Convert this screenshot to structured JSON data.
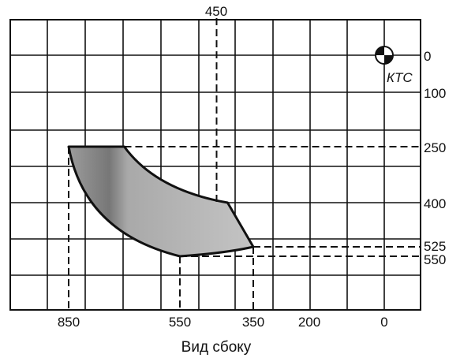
{
  "caption": "Вид сбоку",
  "top_label": "450",
  "reference_point": {
    "label": "КТС",
    "x": 0,
    "y": 0
  },
  "x_axis_labels": [
    "850",
    "550",
    "350",
    "200",
    "0"
  ],
  "y_axis_labels": [
    "0",
    "100",
    "250",
    "400",
    "525",
    "550"
  ],
  "chart_data": {
    "type": "area",
    "title": "",
    "xlabel": "Вид сбоку",
    "ylabel": "",
    "x_ticks": [
      850,
      550,
      350,
      200,
      0
    ],
    "y_ticks": [
      0,
      100,
      250,
      400,
      525,
      550
    ],
    "grid": true,
    "series": [
      {
        "points": [
          [
            850,
            250
          ],
          [
            700,
            250
          ],
          [
            420,
            400
          ],
          [
            350,
            525
          ],
          [
            550,
            550
          ]
        ],
        "fill": "#b8b8b8",
        "stroke": "#111111"
      }
    ],
    "dashed_guides": [
      {
        "orientation": "vertical",
        "x": 450
      },
      {
        "orientation": "vertical",
        "x": 850
      },
      {
        "orientation": "vertical",
        "x": 550
      },
      {
        "orientation": "vertical",
        "x": 350
      },
      {
        "orientation": "horizontal",
        "y": 250
      },
      {
        "orientation": "horizontal",
        "y": 525
      },
      {
        "orientation": "horizontal",
        "y": 550
      }
    ]
  }
}
